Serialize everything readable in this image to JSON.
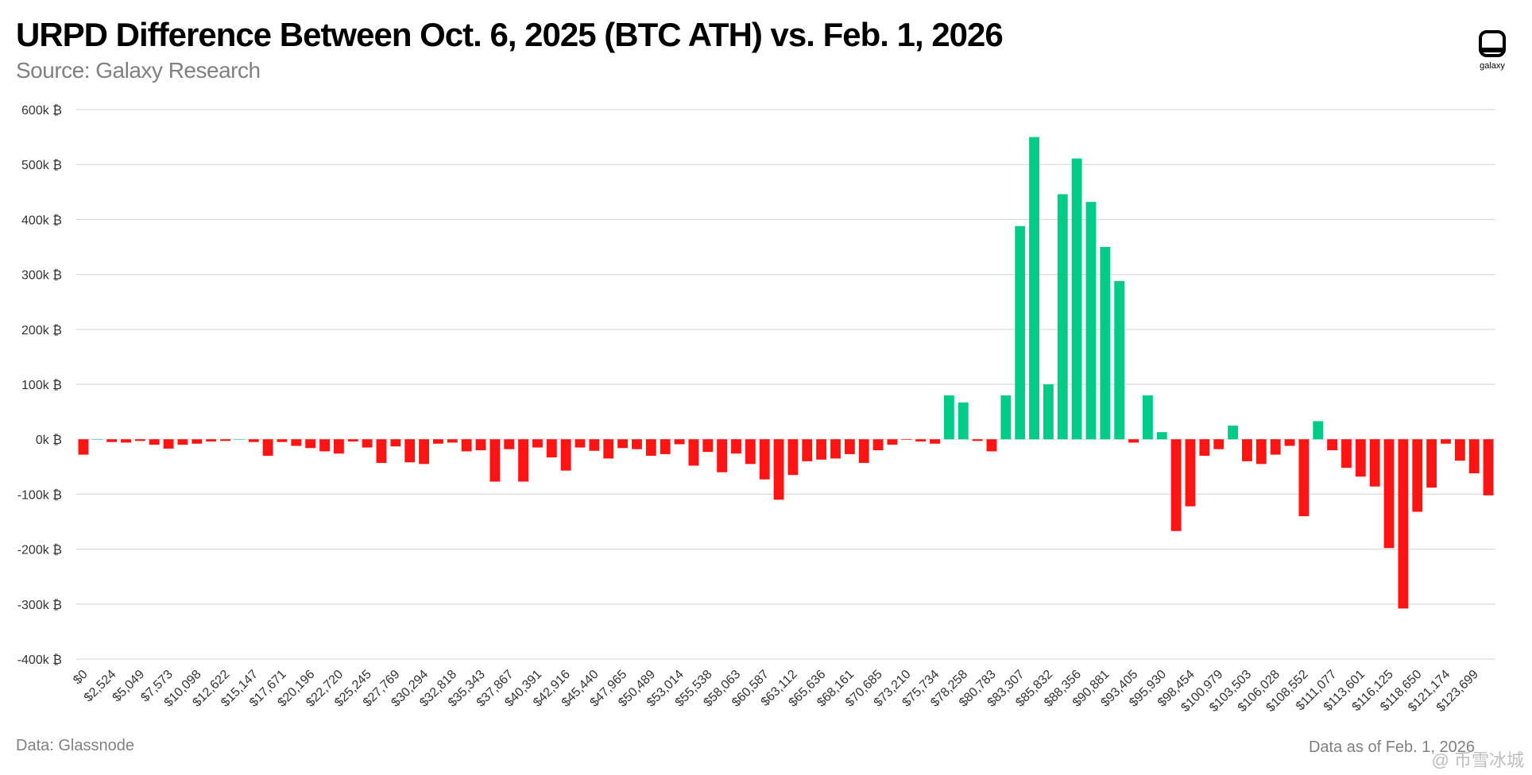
{
  "header": {
    "title": "URPD Difference Between Oct. 6, 2025 (BTC ATH) vs. Feb. 1, 2026",
    "subtitle": "Source: Galaxy Research"
  },
  "logo": {
    "text": "galaxy",
    "icon": "galaxy-logo-icon"
  },
  "footer": {
    "left": "Data: Glassnode",
    "right": "Data as of Feb. 1, 2026"
  },
  "watermark": {
    "text": "@ 币雪冰城"
  },
  "colors": {
    "positive": "#00CC88",
    "negative": "#FF1414",
    "grid": "#D9D9D9",
    "axis_text": "#333333"
  },
  "chart_data": {
    "type": "bar",
    "title": "URPD Difference Between Oct. 6, 2025 (BTC ATH) vs. Feb. 1, 2026",
    "xlabel": "",
    "ylabel": "",
    "ylim": [
      -400000,
      600000
    ],
    "y_ticks": [
      600000,
      500000,
      400000,
      300000,
      200000,
      100000,
      0,
      -100000,
      -200000,
      -300000,
      -400000
    ],
    "y_tick_labels": [
      "600k ₿",
      "500k ₿",
      "400k ₿",
      "300k ₿",
      "200k ₿",
      "100k ₿",
      "0k ₿",
      "-100k ₿",
      "-200k ₿",
      "-300k ₿",
      "-400k ₿"
    ],
    "x_tick_labels": [
      "$0",
      "$2,524",
      "$5,049",
      "$7,573",
      "$10,098",
      "$12,622",
      "$15,147",
      "$17,671",
      "$20,196",
      "$22,720",
      "$25,245",
      "$27,769",
      "$30,294",
      "$32,818",
      "$35,343",
      "$37,867",
      "$40,391",
      "$42,916",
      "$45,440",
      "$47,965",
      "$50,489",
      "$53,014",
      "$55,538",
      "$58,063",
      "$60,587",
      "$63,112",
      "$65,636",
      "$68,161",
      "$70,685",
      "$73,210",
      "$75,734",
      "$78,258",
      "$80,783",
      "$83,307",
      "$85,832",
      "$88,356",
      "$90,881",
      "$93,405",
      "$95,930",
      "$98,454",
      "$100,979",
      "$103,503",
      "$106,028",
      "$108,552",
      "$111,077",
      "$113,601",
      "$116,125",
      "$118,650",
      "$121,174",
      "$123,699"
    ],
    "grid": true,
    "legend": "none",
    "values": [
      -28000,
      0,
      -5000,
      -6000,
      -3000,
      -10000,
      -17000,
      -10000,
      -8000,
      -4000,
      -3000,
      0,
      -5000,
      -30000,
      -5000,
      -12000,
      -16000,
      -22000,
      -26000,
      -4000,
      -15000,
      -43000,
      -13000,
      -42000,
      -45000,
      -8000,
      -6000,
      -22000,
      -20000,
      -77000,
      -18000,
      -77000,
      -15000,
      -33000,
      -57000,
      -15000,
      -21000,
      -35000,
      -16000,
      -18000,
      -30000,
      -27000,
      -9000,
      -48000,
      -23000,
      -60000,
      -26000,
      -45000,
      -73000,
      -110000,
      -65000,
      -40000,
      -37000,
      -35000,
      -27000,
      -43000,
      -20000,
      -10000,
      -1000,
      -4000,
      -8000,
      80000,
      67000,
      -3000,
      -22000,
      80000,
      388000,
      550000,
      100000,
      446000,
      511000,
      432000,
      350000,
      288000,
      -6000,
      80000,
      13000,
      -167000,
      -122000,
      -30000,
      -18000,
      25000,
      -40000,
      -45000,
      -28000,
      -12000,
      -140000,
      33000,
      -20000,
      -52000,
      -68000,
      -86000,
      -198000,
      -308000,
      -132000,
      -88000,
      -8000,
      -39000,
      -62000,
      -102000
    ]
  }
}
